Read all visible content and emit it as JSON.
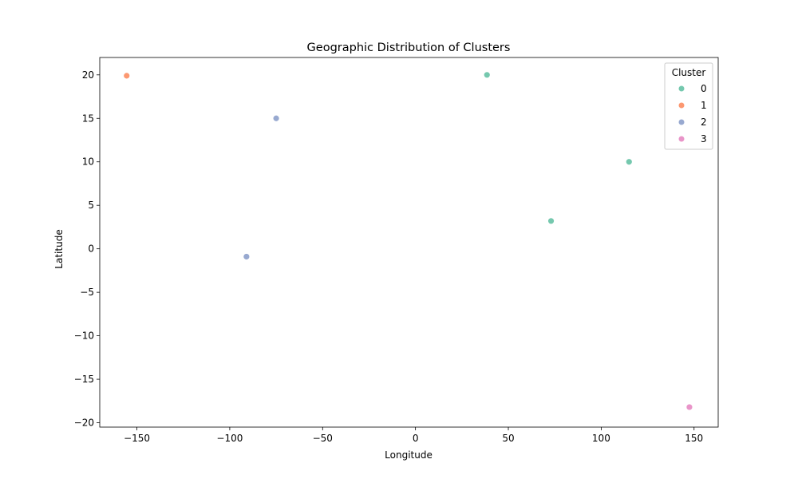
{
  "chart_data": {
    "type": "scatter",
    "title": "Geographic Distribution of Clusters",
    "xlabel": "Longitude",
    "ylabel": "Latitude",
    "xlim": [
      -170,
      163
    ],
    "ylim": [
      -20.5,
      22
    ],
    "xticks": [
      -150,
      -100,
      -50,
      0,
      50,
      100,
      150
    ],
    "xtick_labels": [
      "−150",
      "−100",
      "−50",
      "0",
      "50",
      "100",
      "150"
    ],
    "yticks": [
      20,
      15,
      10,
      5,
      0,
      -5,
      -10,
      -15,
      -20
    ],
    "ytick_labels": [
      "20",
      "15",
      "10",
      "5",
      "0",
      "−5",
      "−10",
      "−15",
      "−20"
    ],
    "grid": false,
    "legend": {
      "title": "Cluster",
      "placement": "top-right"
    },
    "series": [
      {
        "name": "0",
        "color": "#66c2a5",
        "points": [
          {
            "x": 38.5,
            "y": 20.0
          },
          {
            "x": 115.0,
            "y": 10.0
          },
          {
            "x": 73.0,
            "y": 3.2
          }
        ]
      },
      {
        "name": "1",
        "color": "#fc8d62",
        "points": [
          {
            "x": -155.5,
            "y": 19.9
          }
        ]
      },
      {
        "name": "2",
        "color": "#8da0cb",
        "points": [
          {
            "x": -75.0,
            "y": 15.0
          },
          {
            "x": -91.0,
            "y": -0.9
          }
        ]
      },
      {
        "name": "3",
        "color": "#e78ac3",
        "points": [
          {
            "x": 147.5,
            "y": -18.2
          }
        ]
      }
    ]
  }
}
